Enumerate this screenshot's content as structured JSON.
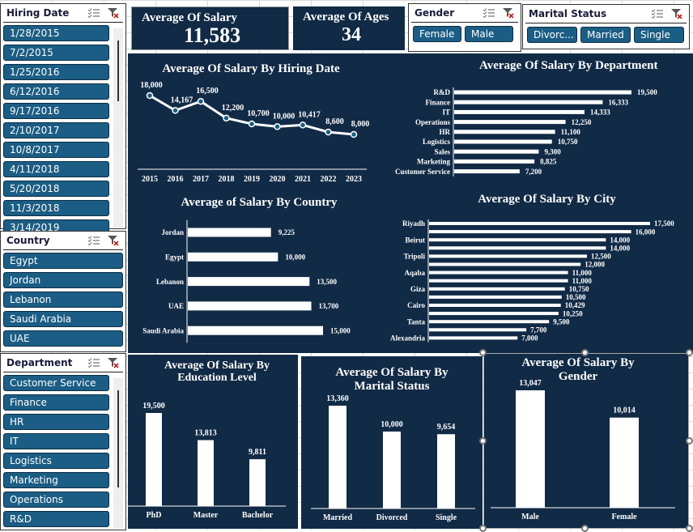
{
  "slicers": {
    "hiring_date": {
      "title": "Hiring Date",
      "items": [
        "1/28/2015",
        "7/2/2015",
        "1/25/2016",
        "6/12/2016",
        "9/17/2016",
        "2/10/2017",
        "10/8/2017",
        "4/11/2018",
        "5/20/2018",
        "11/3/2018",
        "3/14/2019"
      ]
    },
    "country": {
      "title": "Country",
      "items": [
        "Egypt",
        "Jordan",
        "Lebanon",
        "Saudi Arabia",
        "UAE"
      ]
    },
    "department": {
      "title": "Department",
      "items": [
        "Customer Service",
        "Finance",
        "HR",
        "IT",
        "Logistics",
        "Marketing",
        "Operations",
        "R&D"
      ]
    },
    "gender": {
      "title": "Gender",
      "items": [
        "Female",
        "Male"
      ]
    },
    "marital_status": {
      "title": "Marital Status",
      "items": [
        "Divorc...",
        "Married",
        "Single"
      ]
    }
  },
  "kpis": {
    "salary": {
      "label": "Average Of Salary",
      "value": "11,583"
    },
    "ages": {
      "label": "Average Of Ages",
      "value": "34"
    }
  },
  "colors": {
    "panel_bg": "#112a46",
    "slicer_button": "#1b5d84",
    "bar": "#ffffff"
  },
  "chart_data": [
    {
      "id": "hiring",
      "type": "line",
      "title": "Average Of Salary By Hiring Date",
      "categories": [
        "2015",
        "2016",
        "2017",
        "2018",
        "2019",
        "2020",
        "2021",
        "2022",
        "2023"
      ],
      "values": [
        18000,
        14167,
        16500,
        12200,
        10700,
        10000,
        10417,
        8600,
        8000
      ],
      "labels": [
        "18,000",
        "14,167",
        "16,500",
        "12,200",
        "10,700",
        "10,000",
        "10,417",
        "8,600",
        "8,000"
      ]
    },
    {
      "id": "department",
      "type": "bar",
      "orientation": "horizontal",
      "title": "Average Of Salary By Department",
      "categories": [
        "R&D",
        "Finance",
        "IT",
        "Operations",
        "HR",
        "Logistics",
        "Sales",
        "Marketing",
        "Customer Service"
      ],
      "values": [
        19500,
        16333,
        14333,
        12250,
        11100,
        10750,
        9300,
        8825,
        7200
      ],
      "labels": [
        "19,500",
        "16,333",
        "14,333",
        "12,250",
        "11,100",
        "10,750",
        "9,300",
        "8,825",
        "7,200"
      ]
    },
    {
      "id": "country",
      "type": "bar",
      "orientation": "horizontal",
      "title": "Average of Salary By Country",
      "categories": [
        "Jordan",
        "Egypt",
        "Lebanon",
        "UAE",
        "Saudi Arabia"
      ],
      "values": [
        9225,
        10000,
        13500,
        13700,
        15000
      ],
      "labels": [
        "9,225",
        "10,000",
        "13,500",
        "13,700",
        "15,000"
      ]
    },
    {
      "id": "city",
      "type": "bar",
      "orientation": "horizontal",
      "title": "Average Of Salary By City",
      "categories": [
        "Riyadh",
        "",
        "Beirut",
        "",
        "Tripoli",
        "",
        "Aqaba",
        "",
        "Giza",
        "",
        "Cairo",
        "",
        "Tanta",
        "",
        "Alexandria"
      ],
      "values": [
        17500,
        16000,
        14000,
        14000,
        12500,
        12000,
        11000,
        11000,
        10750,
        10500,
        10429,
        10250,
        9500,
        7700,
        7000
      ],
      "labels": [
        "17,500",
        "16,000",
        "14,000",
        "14,000",
        "12,500",
        "12,000",
        "11,000",
        "11,000",
        "10,750",
        "10,500",
        "10,429",
        "10,250",
        "9,500",
        "7,700",
        "7,000"
      ]
    },
    {
      "id": "education",
      "type": "bar",
      "title": "Average Of Salary By Education Level",
      "title_lines": [
        "Average Of Salary By",
        "Education Level"
      ],
      "categories": [
        "PhD",
        "Master",
        "Bachelor"
      ],
      "values": [
        19500,
        13813,
        9811
      ],
      "labels": [
        "19,500",
        "13,813",
        "9,811"
      ]
    },
    {
      "id": "marital",
      "type": "bar",
      "title": "Average Of Salary By Marital Status",
      "title_lines": [
        "Average Of Salary By",
        "Marital Status"
      ],
      "categories": [
        "Married",
        "Divorced",
        "Single"
      ],
      "values": [
        13360,
        10000,
        9654
      ],
      "labels": [
        "13,360",
        "10,000",
        "9,654"
      ]
    },
    {
      "id": "gender",
      "type": "bar",
      "title": "Average Of  Salary By Gender",
      "title_lines": [
        "Average Of  Salary By",
        "Gender"
      ],
      "categories": [
        "Male",
        "Female"
      ],
      "values": [
        13047,
        10014
      ],
      "labels": [
        "13,047",
        "10,014"
      ]
    }
  ]
}
